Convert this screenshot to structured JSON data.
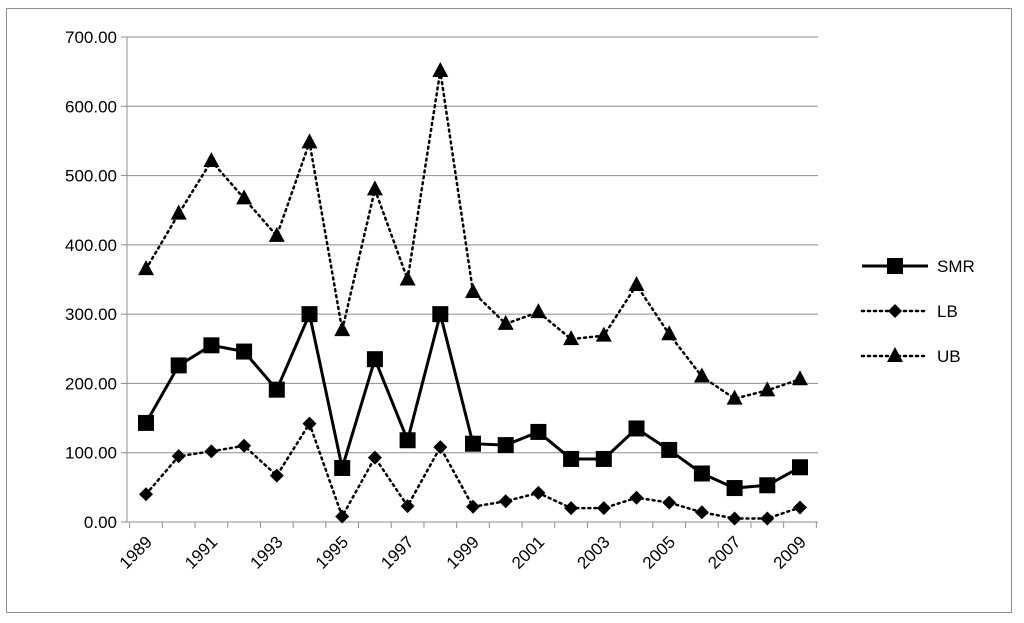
{
  "chart_data": {
    "type": "line",
    "title": "",
    "xlabel": "",
    "ylabel": "",
    "x": [
      1989,
      1990,
      1991,
      1992,
      1993,
      1994,
      1995,
      1996,
      1997,
      1998,
      1999,
      2000,
      2001,
      2002,
      2003,
      2004,
      2005,
      2006,
      2007,
      2008,
      2009
    ],
    "x_tick_labels": [
      "1989",
      "1991",
      "1993",
      "1995",
      "1997",
      "1999",
      "2001",
      "2003",
      "2005",
      "2007",
      "2009"
    ],
    "y_tick_labels": [
      "0.00",
      "100.00",
      "200.00",
      "300.00",
      "400.00",
      "500.00",
      "600.00",
      "700.00"
    ],
    "ylim": [
      0,
      700
    ],
    "grid": "horizontal",
    "legend_position": "right",
    "series": [
      {
        "name": "SMR",
        "style": "solid",
        "marker": "square",
        "color": "#000000",
        "values": [
          143,
          226,
          255,
          246,
          191,
          300,
          78,
          235,
          118,
          300,
          113,
          111,
          130,
          91,
          91,
          135,
          104,
          70,
          49,
          53,
          79
        ]
      },
      {
        "name": "LB",
        "style": "dotted",
        "marker": "diamond",
        "color": "#000000",
        "values": [
          40,
          95,
          102,
          110,
          67,
          142,
          8,
          93,
          23,
          108,
          22,
          30,
          42,
          20,
          20,
          35,
          28,
          14,
          5,
          5,
          21
        ]
      },
      {
        "name": "UB",
        "style": "dotted",
        "marker": "triangle",
        "color": "#000000",
        "values": [
          365,
          445,
          521,
          467,
          413,
          548,
          277,
          480,
          350,
          651,
          332,
          286,
          303,
          264,
          269,
          342,
          271,
          210,
          178,
          190,
          206
        ]
      }
    ]
  }
}
